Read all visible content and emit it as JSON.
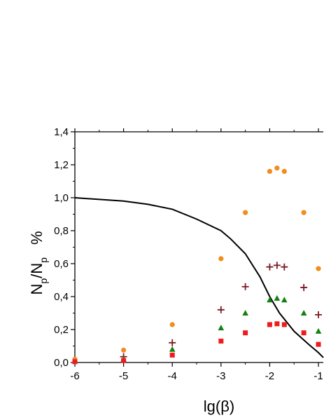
{
  "chart_data": {
    "type": "scatter",
    "title": "",
    "xlabel": "lg(β)",
    "ylabel": {
      "main": "N",
      "sub": "p",
      "mid": "/N",
      "sub2": "p",
      "unit": "%"
    },
    "xlim": [
      -6,
      -0.9
    ],
    "ylim": [
      0,
      1.4
    ],
    "xticks": [
      -6,
      -5,
      -4,
      -3,
      -2,
      -1
    ],
    "xtick_labels": [
      "-6",
      "-5",
      "-4",
      "-3",
      "-2",
      "-1"
    ],
    "yticks": [
      0.0,
      0.2,
      0.4,
      0.6,
      0.8,
      1.0,
      1.2,
      1.4
    ],
    "ytick_labels": [
      "0,0",
      "0,2",
      "0,4",
      "0,6",
      "0,8",
      "1,0",
      "1,2",
      "1,4"
    ],
    "grid": false,
    "series": [
      {
        "marker": "line",
        "color": "#000000",
        "x": [
          -6,
          -5.5,
          -5,
          -4.5,
          -4,
          -3.5,
          -3,
          -2.8,
          -2.5,
          -2.2,
          -2.0,
          -1.8,
          -1.5,
          -1.2,
          -1.0,
          -0.9
        ],
        "y": [
          1.0,
          0.99,
          0.98,
          0.96,
          0.93,
          0.87,
          0.8,
          0.75,
          0.66,
          0.52,
          0.4,
          0.3,
          0.19,
          0.11,
          0.06,
          0.03
        ]
      },
      {
        "marker": "circle",
        "color": "#f28c1e",
        "x": [
          -6,
          -5,
          -4,
          -3,
          -2.5,
          -2,
          -1.85,
          -1.7,
          -1.3,
          -1
        ],
        "y": [
          0.02,
          0.075,
          0.23,
          0.63,
          0.91,
          1.16,
          1.18,
          1.16,
          0.91,
          0.57
        ]
      },
      {
        "marker": "plus",
        "color": "#7b1a24",
        "x": [
          -5,
          -4,
          -3,
          -2.5,
          -2,
          -1.85,
          -1.7,
          -1.3,
          -1
        ],
        "y": [
          0.035,
          0.12,
          0.32,
          0.46,
          0.58,
          0.59,
          0.58,
          0.455,
          0.29
        ]
      },
      {
        "marker": "triangle",
        "color": "#128012",
        "x": [
          -5,
          -4,
          -3,
          -2.5,
          -2,
          -1.85,
          -1.7,
          -1.3,
          -1
        ],
        "y": [
          0.02,
          0.08,
          0.21,
          0.3,
          0.38,
          0.39,
          0.38,
          0.3,
          0.19
        ]
      },
      {
        "marker": "square",
        "color": "#ee1c1c",
        "x": [
          -6,
          -5,
          -4,
          -3,
          -2.5,
          -2,
          -1.85,
          -1.7,
          -1.3,
          -1
        ],
        "y": [
          0.005,
          0.012,
          0.045,
          0.13,
          0.18,
          0.23,
          0.235,
          0.23,
          0.18,
          0.11
        ]
      }
    ]
  }
}
